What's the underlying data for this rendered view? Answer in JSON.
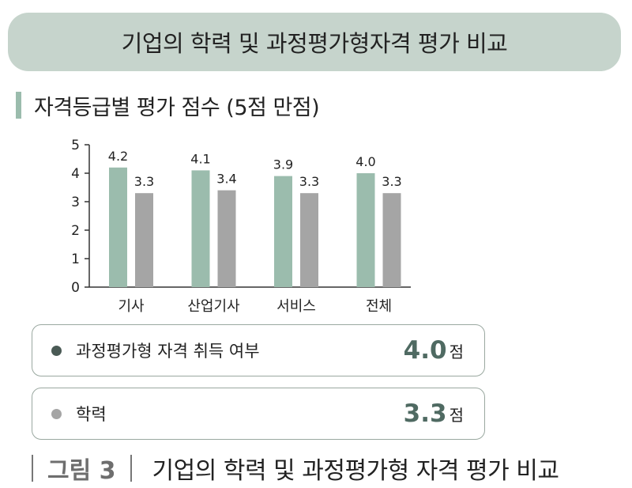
{
  "header": {
    "title": "기업의 학력 및 과정평가형자격 평가 비교"
  },
  "subtitle": "자격등급별 평가 점수 (5점 만점)",
  "chart_data": {
    "type": "bar",
    "categories": [
      "기사",
      "산업기사",
      "서비스",
      "전체"
    ],
    "series": [
      {
        "name": "과정평가형 자격 취득 여부",
        "values": [
          4.2,
          4.1,
          3.9,
          4.0
        ],
        "labels": [
          "4.2",
          "4.1",
          "3.9",
          "4.0"
        ],
        "color": "#9bbcad"
      },
      {
        "name": "학력",
        "values": [
          3.3,
          3.4,
          3.3,
          3.3
        ],
        "labels": [
          "3.3",
          "3.4",
          "3.3",
          "3.3"
        ],
        "color": "#a5a5a5"
      }
    ],
    "ylim": [
      0,
      5
    ],
    "yticks": [
      0,
      1,
      2,
      3,
      4,
      5
    ],
    "legend_position": "bottom"
  },
  "legend": [
    {
      "label": "과정평가형 자격 취득 여부",
      "value": "4.0",
      "unit": "점",
      "color": "#4a5a55"
    },
    {
      "label": "학력",
      "value": "3.3",
      "unit": "점",
      "color": "#a5a5a5"
    }
  ],
  "caption": {
    "figure": "그림 3",
    "text": "기업의 학력 및 과정평가형 자격 평가 비교"
  }
}
